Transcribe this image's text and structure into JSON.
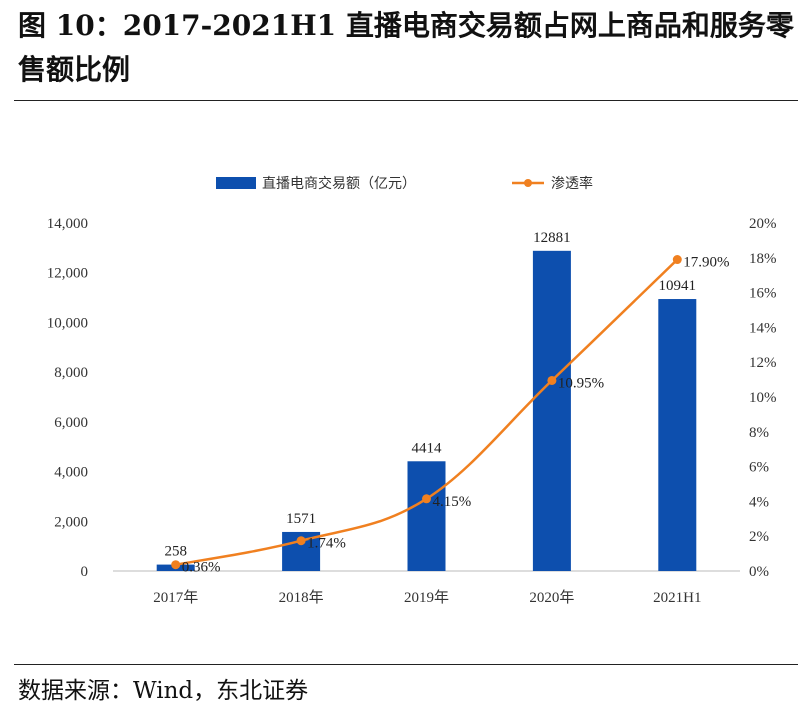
{
  "figure": {
    "title": "图 10：2017-2021H1 直播电商交易额占网上商品和服务零售额比例",
    "source": "数据来源：Wind，东北证券"
  },
  "colors": {
    "bar": "#0d4fae",
    "line": "#f08020",
    "axis_text": "#333333",
    "axis_line": "#bbbbbb"
  },
  "chart_data": {
    "type": "bar",
    "categories": [
      "2017年",
      "2018年",
      "2019年",
      "2020年",
      "2021H1"
    ],
    "series": [
      {
        "name": "直播电商交易额（亿元）",
        "type": "bar",
        "axis": "left",
        "values": [
          258,
          1571,
          4414,
          12881,
          10941
        ],
        "labels": [
          "258",
          "1571",
          "4414",
          "12881",
          "10941"
        ]
      },
      {
        "name": "渗透率",
        "type": "line",
        "axis": "right",
        "values": [
          0.36,
          1.74,
          4.15,
          10.95,
          17.9
        ],
        "labels": [
          "0.36%",
          "1.74%",
          "4.15%",
          "10.95%",
          "17.90%"
        ]
      }
    ],
    "left_axis": {
      "ylim": [
        0,
        14000
      ],
      "ticks": [
        "0",
        "2,000",
        "4,000",
        "6,000",
        "8,000",
        "10,000",
        "12,000",
        "14,000"
      ]
    },
    "right_axis": {
      "ylim": [
        0,
        20
      ],
      "ticks": [
        "0%",
        "2%",
        "4%",
        "6%",
        "8%",
        "10%",
        "12%",
        "14%",
        "16%",
        "18%",
        "20%"
      ]
    },
    "legend": {
      "position": "top-center"
    },
    "grid": false
  }
}
